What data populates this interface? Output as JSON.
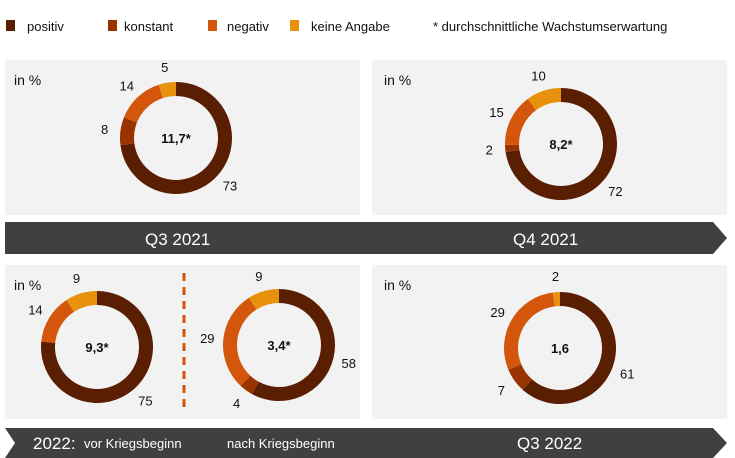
{
  "legend": {
    "items": [
      {
        "label": "positiv",
        "color": "#5a1e02"
      },
      {
        "label": "konstant",
        "color": "#993300"
      },
      {
        "label": "negativ",
        "color": "#d4560c"
      },
      {
        "label": "keine Angabe",
        "color": "#e8910d"
      }
    ],
    "note": "* durchschnittliche Wachstumserwartung"
  },
  "banners": [
    {
      "left": "Q3 2021",
      "right": "Q4 2021"
    },
    {
      "prefix": "2022:",
      "left": "vor Kriegsbeginn",
      "middle": "nach Kriegsbeginn",
      "right": "Q3 2022"
    }
  ],
  "unit_label": "in %",
  "chart_data": [
    {
      "type": "pie",
      "donut": true,
      "period": "Q3 2021",
      "center_label": "11,7*",
      "categories": [
        "positiv",
        "konstant",
        "negativ",
        "keine Angabe"
      ],
      "values": [
        73,
        8,
        14,
        5
      ]
    },
    {
      "type": "pie",
      "donut": true,
      "period": "Q4 2021",
      "center_label": "8,2*",
      "categories": [
        "positiv",
        "konstant",
        "negativ",
        "keine Angabe"
      ],
      "values": [
        72,
        2,
        15,
        10
      ]
    },
    {
      "type": "pie",
      "donut": true,
      "period": "2022: vor Kriegsbeginn",
      "center_label": "9,3*",
      "categories": [
        "positiv",
        "konstant",
        "negativ",
        "keine Angabe"
      ],
      "values": [
        75,
        null,
        14,
        9
      ]
    },
    {
      "type": "pie",
      "donut": true,
      "period": "nach Kriegsbeginn",
      "center_label": "3,4*",
      "categories": [
        "positiv",
        "konstant",
        "negativ",
        "keine Angabe"
      ],
      "values": [
        58,
        4,
        29,
        9
      ]
    },
    {
      "type": "pie",
      "donut": true,
      "period": "Q3 2022",
      "center_label": "1,6",
      "categories": [
        "positiv",
        "konstant",
        "negativ",
        "keine Angabe"
      ],
      "values": [
        61,
        7,
        29,
        2
      ]
    }
  ]
}
